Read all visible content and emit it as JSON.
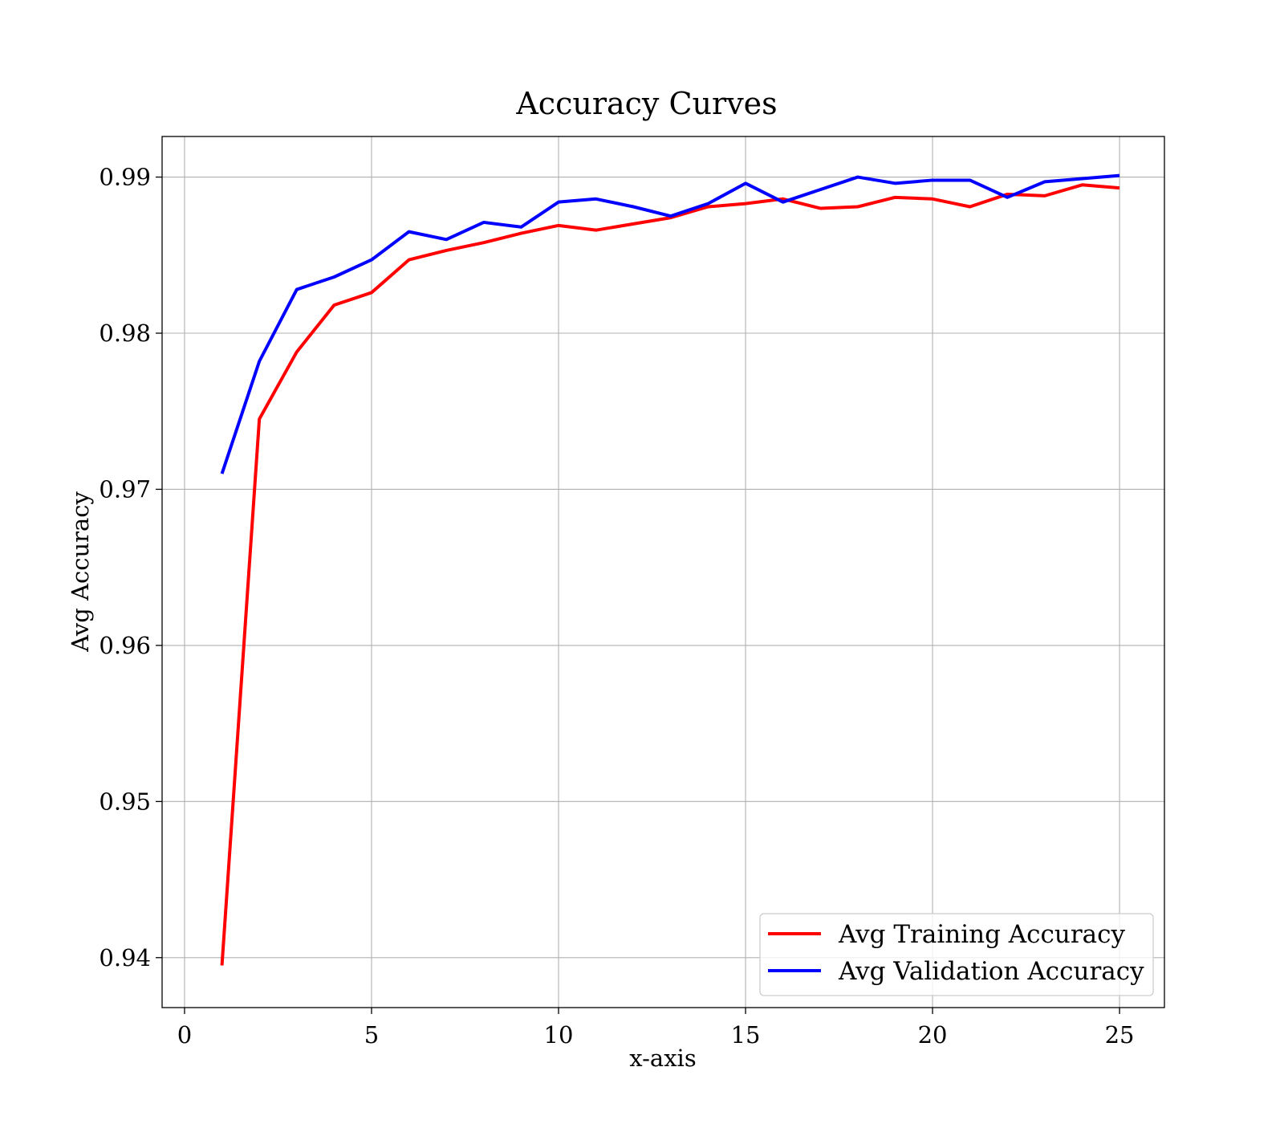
{
  "chart_data": {
    "type": "line",
    "title": "Accuracy Curves",
    "xlabel": "x-axis",
    "ylabel": "Avg Accuracy",
    "xlim": [
      -0.6,
      26.2
    ],
    "ylim": [
      0.9368,
      0.9926
    ],
    "xticks": [
      0,
      5,
      10,
      15,
      20,
      25
    ],
    "xtick_labels": [
      "0",
      "5",
      "10",
      "15",
      "20",
      "25"
    ],
    "yticks": [
      0.94,
      0.95,
      0.96,
      0.97,
      0.98,
      0.99
    ],
    "ytick_labels": [
      "0.94",
      "0.95",
      "0.96",
      "0.97",
      "0.98",
      "0.99"
    ],
    "grid": true,
    "legend_position": "lower-right",
    "x": [
      1,
      2,
      3,
      4,
      5,
      6,
      7,
      8,
      9,
      10,
      11,
      12,
      13,
      14,
      15,
      16,
      17,
      18,
      19,
      20,
      21,
      22,
      23,
      24,
      25
    ],
    "series": [
      {
        "name": "Avg Training Accuracy",
        "color": "#ff0000",
        "values": [
          0.9395,
          0.9745,
          0.9788,
          0.9818,
          0.9826,
          0.9847,
          0.9853,
          0.9858,
          0.9864,
          0.9869,
          0.9866,
          0.987,
          0.9874,
          0.9881,
          0.9883,
          0.9886,
          0.988,
          0.9881,
          0.9887,
          0.9886,
          0.9881,
          0.9889,
          0.9888,
          0.9895,
          0.9893
        ]
      },
      {
        "name": "Avg Validation Accuracy",
        "color": "#0000ff",
        "values": [
          0.971,
          0.9782,
          0.9828,
          0.9836,
          0.9847,
          0.9865,
          0.986,
          0.9871,
          0.9868,
          0.9884,
          0.9886,
          0.9881,
          0.9875,
          0.9883,
          0.9896,
          0.9884,
          0.9892,
          0.99,
          0.9896,
          0.9898,
          0.9898,
          0.9887,
          0.9897,
          0.9899,
          0.9901
        ]
      }
    ]
  }
}
